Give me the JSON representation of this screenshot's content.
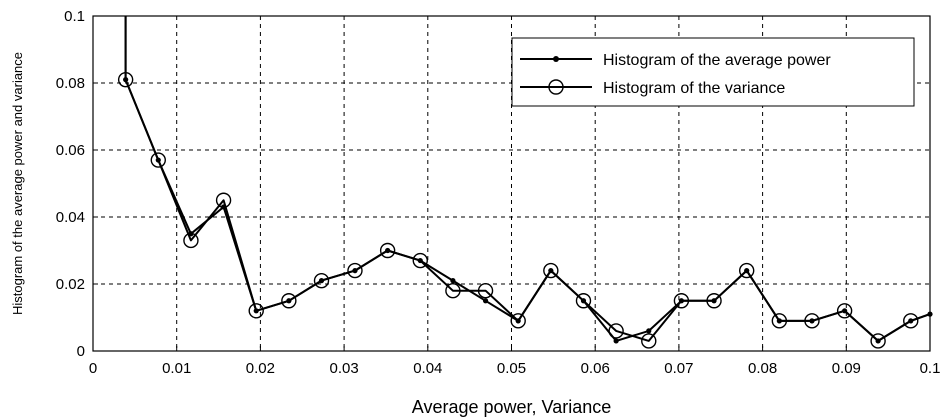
{
  "chart_data": {
    "type": "line",
    "xlabel": "Average power, Variance",
    "ylabel": "Histogram of the average power and variance",
    "xlim": [
      0,
      0.1
    ],
    "ylim": [
      0,
      0.1
    ],
    "x_ticks": [
      "0",
      "0.01",
      "0.02",
      "0.03",
      "0.04",
      "0.05",
      "0.06",
      "0.07",
      "0.08",
      "0.09",
      "0.1"
    ],
    "y_ticks": [
      "0",
      "0.02",
      "0.04",
      "0.06",
      "0.08",
      "0.1"
    ],
    "grid": true,
    "legend_position": "top-right",
    "series": [
      {
        "name": "Histogram of the average power",
        "marker": "dot",
        "color": "#000000",
        "x": [
          0.0039,
          0.0039,
          0.0078,
          0.0117,
          0.0156,
          0.0195,
          0.0234,
          0.0273,
          0.0313,
          0.0352,
          0.0391,
          0.043,
          0.0469,
          0.0508,
          0.0547,
          0.0586,
          0.0625,
          0.0664,
          0.0703,
          0.0742,
          0.0781,
          0.082,
          0.0859,
          0.0898,
          0.0938,
          0.0977,
          0.1
        ],
        "y": [
          0.1,
          0.081,
          0.057,
          0.035,
          0.043,
          0.012,
          0.015,
          0.021,
          0.024,
          0.03,
          0.027,
          0.021,
          0.015,
          0.009,
          0.024,
          0.015,
          0.003,
          0.006,
          0.015,
          0.015,
          0.024,
          0.009,
          0.009,
          0.012,
          0.003,
          0.009,
          0.011
        ]
      },
      {
        "name": "Histogram of the variance",
        "marker": "circle",
        "color": "#000000",
        "x": [
          0.0039,
          0.0039,
          0.0078,
          0.0117,
          0.0156,
          0.0195,
          0.0234,
          0.0273,
          0.0313,
          0.0352,
          0.0391,
          0.043,
          0.0469,
          0.0508,
          0.0547,
          0.0586,
          0.0625,
          0.0664,
          0.0703,
          0.0742,
          0.0781,
          0.082,
          0.0859,
          0.0898,
          0.0938,
          0.0977,
          0.1
        ],
        "y": [
          0.1,
          0.081,
          0.057,
          0.033,
          0.045,
          0.012,
          0.015,
          0.021,
          0.024,
          0.03,
          0.027,
          0.018,
          0.018,
          0.009,
          0.024,
          0.015,
          0.006,
          0.003,
          0.015,
          0.015,
          0.024,
          0.009,
          0.009,
          0.012,
          0.003,
          0.009,
          0.011
        ],
        "marker_indices": [
          1,
          2,
          3,
          4,
          5,
          6,
          7,
          8,
          9,
          10,
          11,
          12,
          13,
          14,
          15,
          16,
          17,
          18,
          19,
          20,
          21,
          22,
          23,
          24,
          25
        ]
      }
    ]
  }
}
